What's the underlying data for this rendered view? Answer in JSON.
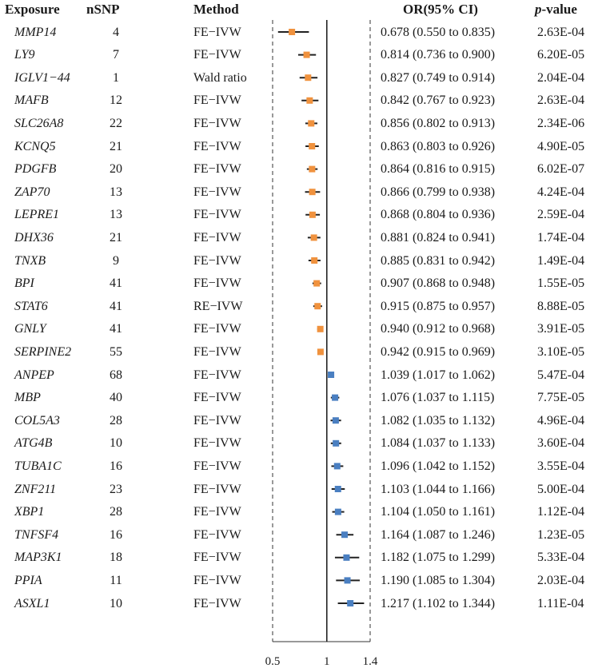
{
  "header": {
    "exposure": "Exposure",
    "nsnp": "nSNP",
    "method": "Method",
    "or": "OR(95% CI)",
    "p_italic": "p",
    "p_rest": "-value"
  },
  "chart_data": {
    "type": "forest",
    "x_ticks": [
      0.5,
      1,
      1.4
    ],
    "xlim": [
      0.5,
      1.4
    ],
    "reference_line": 1,
    "colors": {
      "below_one": "#f0923e",
      "above_one": "#4a7fc1",
      "ci_line": "#222222"
    },
    "rows": [
      {
        "exposure": "MMP14",
        "nsnp": "4",
        "method": "FE−IVW",
        "or": 0.678,
        "lo": 0.55,
        "hi": 0.835,
        "or_text": "0.678 (0.550 to 0.835)",
        "p": "2.63E-04"
      },
      {
        "exposure": "LY9",
        "nsnp": "7",
        "method": "FE−IVW",
        "or": 0.814,
        "lo": 0.736,
        "hi": 0.9,
        "or_text": "0.814 (0.736 to 0.900)",
        "p": "6.20E-05"
      },
      {
        "exposure": "IGLV1−44",
        "nsnp": "1",
        "method": "Wald ratio",
        "or": 0.827,
        "lo": 0.749,
        "hi": 0.914,
        "or_text": "0.827 (0.749 to 0.914)",
        "p": "2.04E-04"
      },
      {
        "exposure": "MAFB",
        "nsnp": "12",
        "method": "FE−IVW",
        "or": 0.842,
        "lo": 0.767,
        "hi": 0.923,
        "or_text": "0.842 (0.767 to 0.923)",
        "p": "2.63E-04"
      },
      {
        "exposure": "SLC26A8",
        "nsnp": "22",
        "method": "FE−IVW",
        "or": 0.856,
        "lo": 0.802,
        "hi": 0.913,
        "or_text": "0.856 (0.802 to 0.913)",
        "p": "2.34E-06"
      },
      {
        "exposure": "KCNQ5",
        "nsnp": "21",
        "method": "FE−IVW",
        "or": 0.863,
        "lo": 0.803,
        "hi": 0.926,
        "or_text": "0.863 (0.803 to 0.926)",
        "p": "4.90E-05"
      },
      {
        "exposure": "PDGFB",
        "nsnp": "20",
        "method": "FE−IVW",
        "or": 0.864,
        "lo": 0.816,
        "hi": 0.915,
        "or_text": "0.864 (0.816 to 0.915)",
        "p": "6.02E-07"
      },
      {
        "exposure": "ZAP70",
        "nsnp": "13",
        "method": "FE−IVW",
        "or": 0.866,
        "lo": 0.799,
        "hi": 0.938,
        "or_text": "0.866 (0.799 to 0.938)",
        "p": "4.24E-04"
      },
      {
        "exposure": "LEPRE1",
        "nsnp": "13",
        "method": "FE−IVW",
        "or": 0.868,
        "lo": 0.804,
        "hi": 0.936,
        "or_text": "0.868 (0.804 to 0.936)",
        "p": "2.59E-04"
      },
      {
        "exposure": "DHX36",
        "nsnp": "21",
        "method": "FE−IVW",
        "or": 0.881,
        "lo": 0.824,
        "hi": 0.941,
        "or_text": "0.881 (0.824 to 0.941)",
        "p": "1.74E-04"
      },
      {
        "exposure": "TNXB",
        "nsnp": "9",
        "method": "FE−IVW",
        "or": 0.885,
        "lo": 0.831,
        "hi": 0.942,
        "or_text": "0.885 (0.831 to 0.942)",
        "p": "1.49E-04"
      },
      {
        "exposure": "BPI",
        "nsnp": "41",
        "method": "FE−IVW",
        "or": 0.907,
        "lo": 0.868,
        "hi": 0.948,
        "or_text": "0.907 (0.868 to 0.948)",
        "p": "1.55E-05"
      },
      {
        "exposure": "STAT6",
        "nsnp": "41",
        "method": "RE−IVW",
        "or": 0.915,
        "lo": 0.875,
        "hi": 0.957,
        "or_text": "0.915 (0.875 to 0.957)",
        "p": "8.88E-05"
      },
      {
        "exposure": "GNLY",
        "nsnp": "41",
        "method": "FE−IVW",
        "or": 0.94,
        "lo": 0.912,
        "hi": 0.968,
        "or_text": "0.940 (0.912 to 0.968)",
        "p": "3.91E-05"
      },
      {
        "exposure": "SERPINE2",
        "nsnp": "55",
        "method": "FE−IVW",
        "or": 0.942,
        "lo": 0.915,
        "hi": 0.969,
        "or_text": "0.942 (0.915 to 0.969)",
        "p": "3.10E-05"
      },
      {
        "exposure": "ANPEP",
        "nsnp": "68",
        "method": "FE−IVW",
        "or": 1.039,
        "lo": 1.017,
        "hi": 1.062,
        "or_text": "1.039 (1.017 to 1.062)",
        "p": "5.47E-04"
      },
      {
        "exposure": "MBP",
        "nsnp": "40",
        "method": "FE−IVW",
        "or": 1.076,
        "lo": 1.037,
        "hi": 1.115,
        "or_text": "1.076 (1.037 to 1.115)",
        "p": "7.75E-05"
      },
      {
        "exposure": "COL5A3",
        "nsnp": "28",
        "method": "FE−IVW",
        "or": 1.082,
        "lo": 1.035,
        "hi": 1.132,
        "or_text": "1.082 (1.035 to 1.132)",
        "p": "4.96E-04"
      },
      {
        "exposure": "ATG4B",
        "nsnp": "10",
        "method": "FE−IVW",
        "or": 1.084,
        "lo": 1.037,
        "hi": 1.133,
        "or_text": "1.084 (1.037 to 1.133)",
        "p": "3.60E-04"
      },
      {
        "exposure": "TUBA1C",
        "nsnp": "16",
        "method": "FE−IVW",
        "or": 1.096,
        "lo": 1.042,
        "hi": 1.152,
        "or_text": "1.096 (1.042 to 1.152)",
        "p": "3.55E-04"
      },
      {
        "exposure": "ZNF211",
        "nsnp": "23",
        "method": "FE−IVW",
        "or": 1.103,
        "lo": 1.044,
        "hi": 1.166,
        "or_text": "1.103 (1.044 to 1.166)",
        "p": "5.00E-04"
      },
      {
        "exposure": "XBP1",
        "nsnp": "28",
        "method": "FE−IVW",
        "or": 1.104,
        "lo": 1.05,
        "hi": 1.161,
        "or_text": "1.104 (1.050 to 1.161)",
        "p": "1.12E-04"
      },
      {
        "exposure": "TNFSF4",
        "nsnp": "16",
        "method": "FE−IVW",
        "or": 1.164,
        "lo": 1.087,
        "hi": 1.246,
        "or_text": "1.164 (1.087 to 1.246)",
        "p": "1.23E-05"
      },
      {
        "exposure": "MAP3K1",
        "nsnp": "18",
        "method": "FE−IVW",
        "or": 1.182,
        "lo": 1.075,
        "hi": 1.299,
        "or_text": "1.182 (1.075 to 1.299)",
        "p": "5.33E-04"
      },
      {
        "exposure": "PPIA",
        "nsnp": "11",
        "method": "FE−IVW",
        "or": 1.19,
        "lo": 1.085,
        "hi": 1.304,
        "or_text": "1.190 (1.085 to 1.304)",
        "p": "2.03E-04"
      },
      {
        "exposure": "ASXL1",
        "nsnp": "10",
        "method": "FE−IVW",
        "or": 1.217,
        "lo": 1.102,
        "hi": 1.344,
        "or_text": "1.217 (1.102 to 1.344)",
        "p": "1.11E-04"
      }
    ]
  }
}
